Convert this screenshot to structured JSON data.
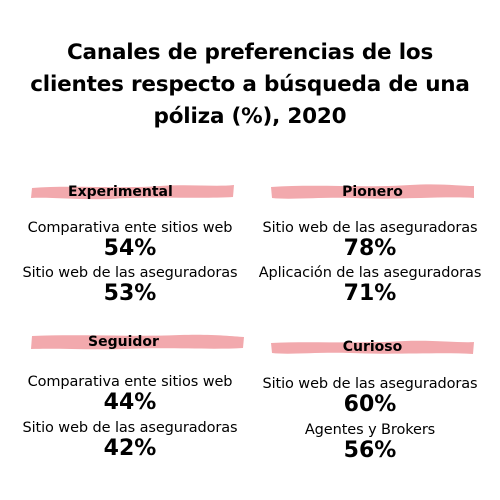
{
  "title_lines": [
    "Canales de preferencias de los",
    "clientes respecto a búsqueda de una",
    "póliza (%), 2020"
  ],
  "colors": {
    "highlight": "#f2a9ad",
    "text": "#000000",
    "background": "#ffffff"
  },
  "chart_data": {
    "type": "table",
    "title": "Canales de preferencias de los clientes respecto a búsqueda de una póliza (%), 2020",
    "unit": "%",
    "groups": [
      {
        "name": "Experimental",
        "items": [
          {
            "label": "Comparativa ente sitios web",
            "value": 54,
            "display": "54%"
          },
          {
            "label": "Sitio web de las aseguradoras",
            "value": 53,
            "display": "53%"
          }
        ]
      },
      {
        "name": "Pionero",
        "items": [
          {
            "label": "Sitio web de las aseguradoras",
            "value": 78,
            "display": "78%"
          },
          {
            "label": "Aplicación de las aseguradoras",
            "value": 71,
            "display": "71%"
          }
        ]
      },
      {
        "name": "Seguidor",
        "items": [
          {
            "label": "Comparativa ente sitios web",
            "value": 44,
            "display": "44%"
          },
          {
            "label": "Sitio web de las aseguradoras",
            "value": 42,
            "display": "42%"
          }
        ]
      },
      {
        "name": "Curioso",
        "items": [
          {
            "label": "Sitio web de las aseguradoras",
            "value": 60,
            "display": "60%"
          },
          {
            "label": "Agentes y Brokers",
            "value": 56,
            "display": "56%"
          }
        ]
      }
    ]
  }
}
